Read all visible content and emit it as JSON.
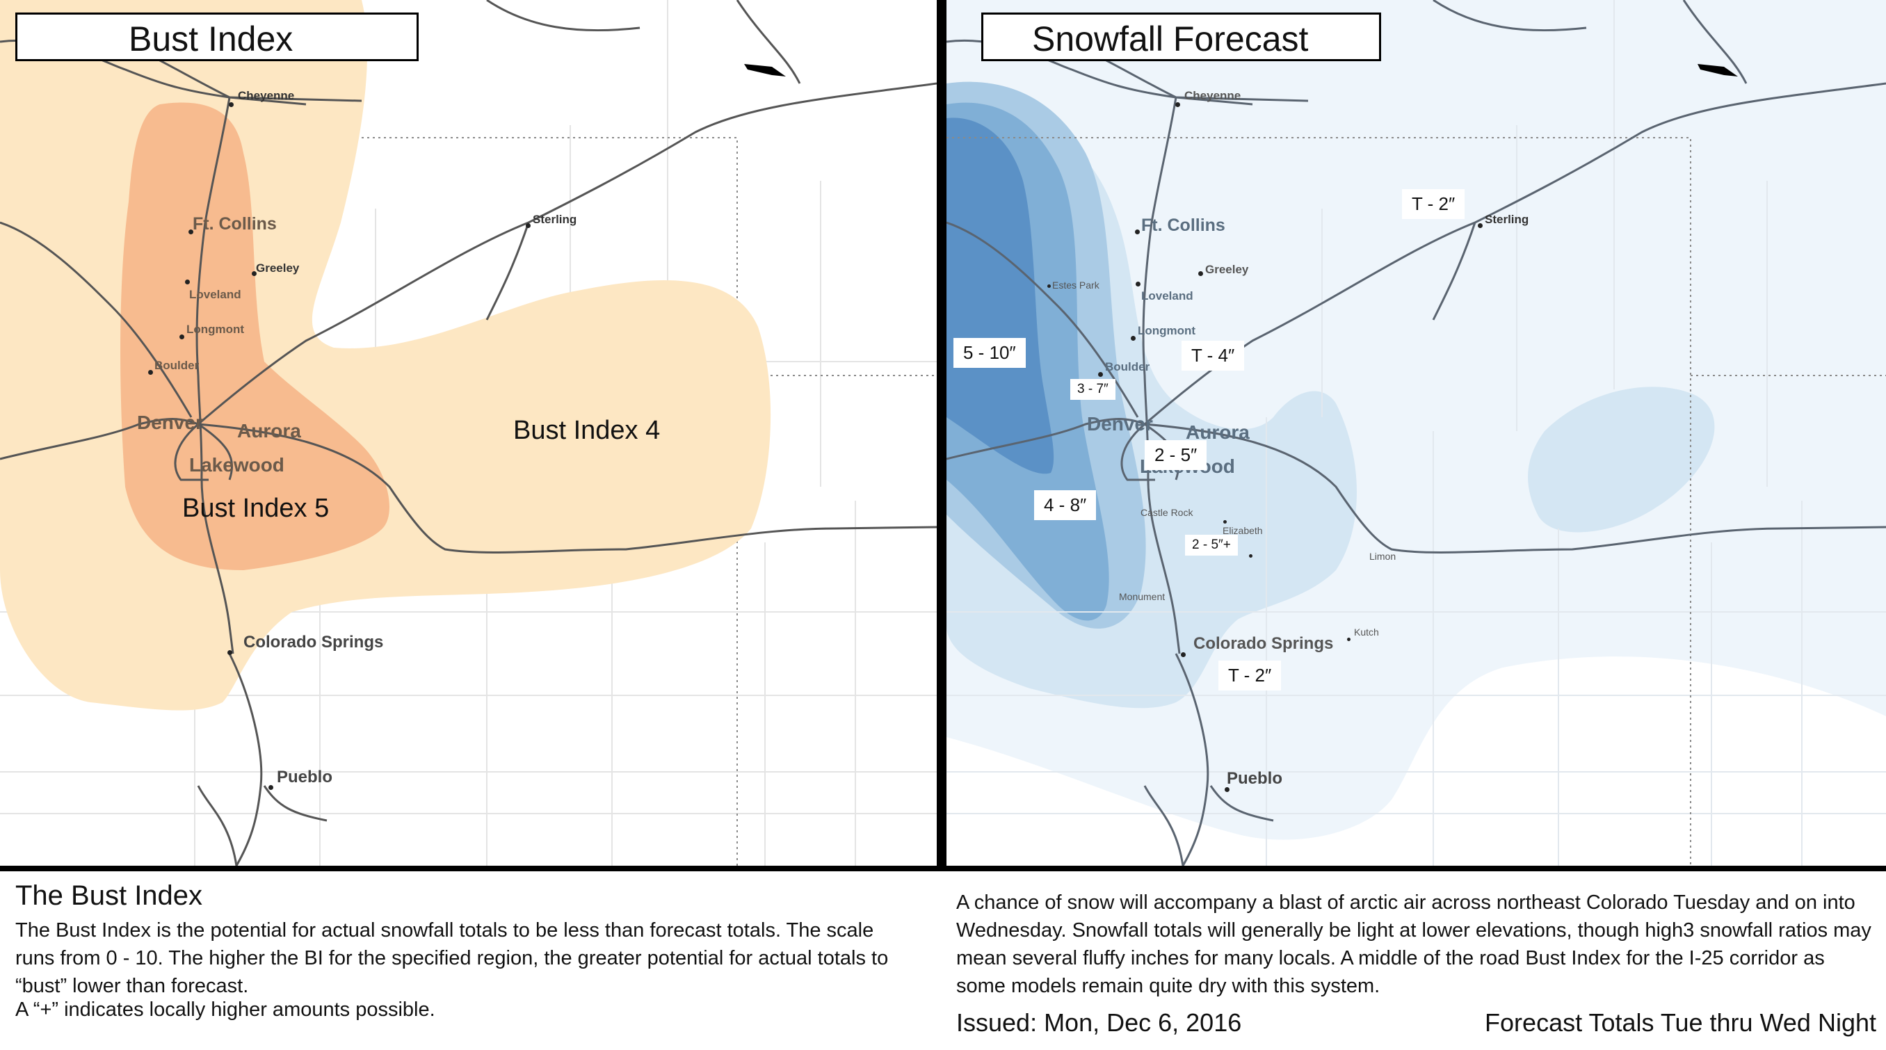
{
  "left_panel": {
    "title": "Bust Index",
    "region_labels": [
      "Bust Index 5",
      "Bust Index 4"
    ],
    "colors": {
      "index_4": "#fde7c3",
      "index_5": "#f7bb8f"
    },
    "cities": {
      "cheyenne": "Cheyenne",
      "sterling": "Sterling",
      "ft_collins": "Ft. Collins",
      "greeley": "Greeley",
      "loveland": "Loveland",
      "longmont": "Longmont",
      "boulder": "Boulder",
      "denver": "Denver",
      "aurora": "Aurora",
      "lakewood": "Lakewood",
      "colorado_springs": "Colorado Springs",
      "pueblo": "Pueblo"
    }
  },
  "right_panel": {
    "title": "Snowfall Forecast",
    "colors": {
      "level_1": "#eef5fb",
      "level_2": "#d4e6f3",
      "level_3": "#aacbe5",
      "level_4": "#80afd6",
      "level_5": "#5b91c6"
    },
    "amounts": {
      "sterling_area": "T - 2″",
      "foothills": "5 - 10″",
      "i25_north": "T - 4″",
      "boulder_area": "3 - 7″",
      "denver_metro": "2 - 5″",
      "palmer_divide": "4 - 8″",
      "elizabeth_area": "2 - 5″+",
      "springs_area": "T - 2″"
    },
    "cities": {
      "cheyenne": "Cheyenne",
      "sterling": "Sterling",
      "ft_collins": "Ft. Collins",
      "estes_park": "Estes Park",
      "greeley": "Greeley",
      "loveland": "Loveland",
      "longmont": "Longmont",
      "boulder": "Boulder",
      "denver": "Denver",
      "aurora": "Aurora",
      "lakewood": "Lakewood",
      "castle_rock": "Castle Rock",
      "elizabeth": "Elizabeth",
      "limon": "Limon",
      "monument": "Monument",
      "kutch": "Kutch",
      "colorado_springs": "Colorado Springs",
      "pueblo": "Pueblo"
    }
  },
  "bust_index_info": {
    "heading": "The Bust Index",
    "description": "The Bust Index is the potential for actual snowfall totals to be less than forecast totals. The scale runs from 0 - 10. The higher the BI for the specified region, the greater potential for actual totals to “bust” lower than forecast.",
    "note": "A “+” indicates locally higher amounts possible."
  },
  "forecast_info": {
    "description": "A chance of snow will accompany a blast of arctic air across northeast Colorado Tuesday and on into Wednesday. Snowfall totals will generally be light at lower elevations, though high3 snowfall ratios may mean several fluffy inches for many locals. A middle of the road Bust Index for the I-25 corridor as some models remain quite dry with this system.",
    "issued": "Issued: Mon, Dec 6, 2016",
    "period": "Forecast Totals Tue thru Wed Night"
  }
}
